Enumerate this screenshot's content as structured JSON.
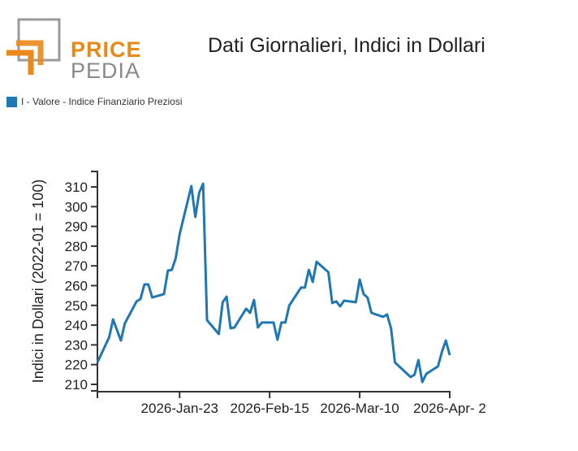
{
  "header": {
    "logo_text_1": "PRICE",
    "logo_text_2": "PEDIA",
    "title": "Dati Giornalieri, Indici in Dollari"
  },
  "legend": {
    "label": "I - Valore - Indice Finanziario Preziosi",
    "color": "#1f77b4"
  },
  "chart_data": {
    "type": "line",
    "title": "Dati Giornalieri, Indici in Dollari",
    "xlabel": "",
    "ylabel": "Indici in Dollari (2022-01 = 100)",
    "ylim": [
      207,
      317
    ],
    "xlim": [
      "2026-01-02",
      "2026-04-02"
    ],
    "yticks": [
      210,
      220,
      230,
      240,
      250,
      260,
      270,
      280,
      290,
      300,
      310
    ],
    "xticks": [
      {
        "date": "2026-01-23",
        "label": "2026-Jan-23"
      },
      {
        "date": "2026-02-15",
        "label": "2026-Feb-15"
      },
      {
        "date": "2026-03-10",
        "label": "2026-Mar-10"
      },
      {
        "date": "2026-04-02",
        "label": "2026-Apr- 2"
      }
    ],
    "series": [
      {
        "name": "I - Valore - Indice Finanziario Preziosi",
        "color": "#1f77b4",
        "x": [
          "2026-01-02",
          "2026-01-05",
          "2026-01-06",
          "2026-01-08",
          "2026-01-09",
          "2026-01-12",
          "2026-01-13",
          "2026-01-14",
          "2026-01-15",
          "2026-01-16",
          "2026-01-19",
          "2026-01-20",
          "2026-01-21",
          "2026-01-22",
          "2026-01-23",
          "2026-01-26",
          "2026-01-27",
          "2026-01-28",
          "2026-01-29",
          "2026-01-30",
          "2026-02-02",
          "2026-02-03",
          "2026-02-04",
          "2026-02-05",
          "2026-02-06",
          "2026-02-09",
          "2026-02-10",
          "2026-02-11",
          "2026-02-12",
          "2026-02-13",
          "2026-02-16",
          "2026-02-17",
          "2026-02-18",
          "2026-02-19",
          "2026-02-20",
          "2026-02-23",
          "2026-02-24",
          "2026-02-25",
          "2026-02-26",
          "2026-02-27",
          "2026-03-02",
          "2026-03-03",
          "2026-03-04",
          "2026-03-05",
          "2026-03-06",
          "2026-03-09",
          "2026-03-10",
          "2026-03-11",
          "2026-03-12",
          "2026-03-13",
          "2026-03-16",
          "2026-03-17",
          "2026-03-18",
          "2026-03-19",
          "2026-03-23",
          "2026-03-24",
          "2026-03-25",
          "2026-03-26",
          "2026-03-27",
          "2026-03-30",
          "2026-03-31",
          "2026-04-01",
          "2026-04-02"
        ],
        "values": [
          221.1,
          233.9,
          242.9,
          232.2,
          240.9,
          252.0,
          253.2,
          260.6,
          260.6,
          254.0,
          255.7,
          267.6,
          268.0,
          273.8,
          286.1,
          310.4,
          294.8,
          307.1,
          311.6,
          242.5,
          235.5,
          251.6,
          254.4,
          238.4,
          238.8,
          248.3,
          246.2,
          252.8,
          238.8,
          241.3,
          241.3,
          232.6,
          241.3,
          241.3,
          249.9,
          259.0,
          259.0,
          268.0,
          261.9,
          272.1,
          266.8,
          251.2,
          252.0,
          249.5,
          252.4,
          251.6,
          263.1,
          255.7,
          254.0,
          246.2,
          244.2,
          245.4,
          238.4,
          221.1,
          213.7,
          214.9,
          222.3,
          211.2,
          215.3,
          219.1,
          226.5,
          232.2,
          224.8
        ]
      }
    ]
  }
}
